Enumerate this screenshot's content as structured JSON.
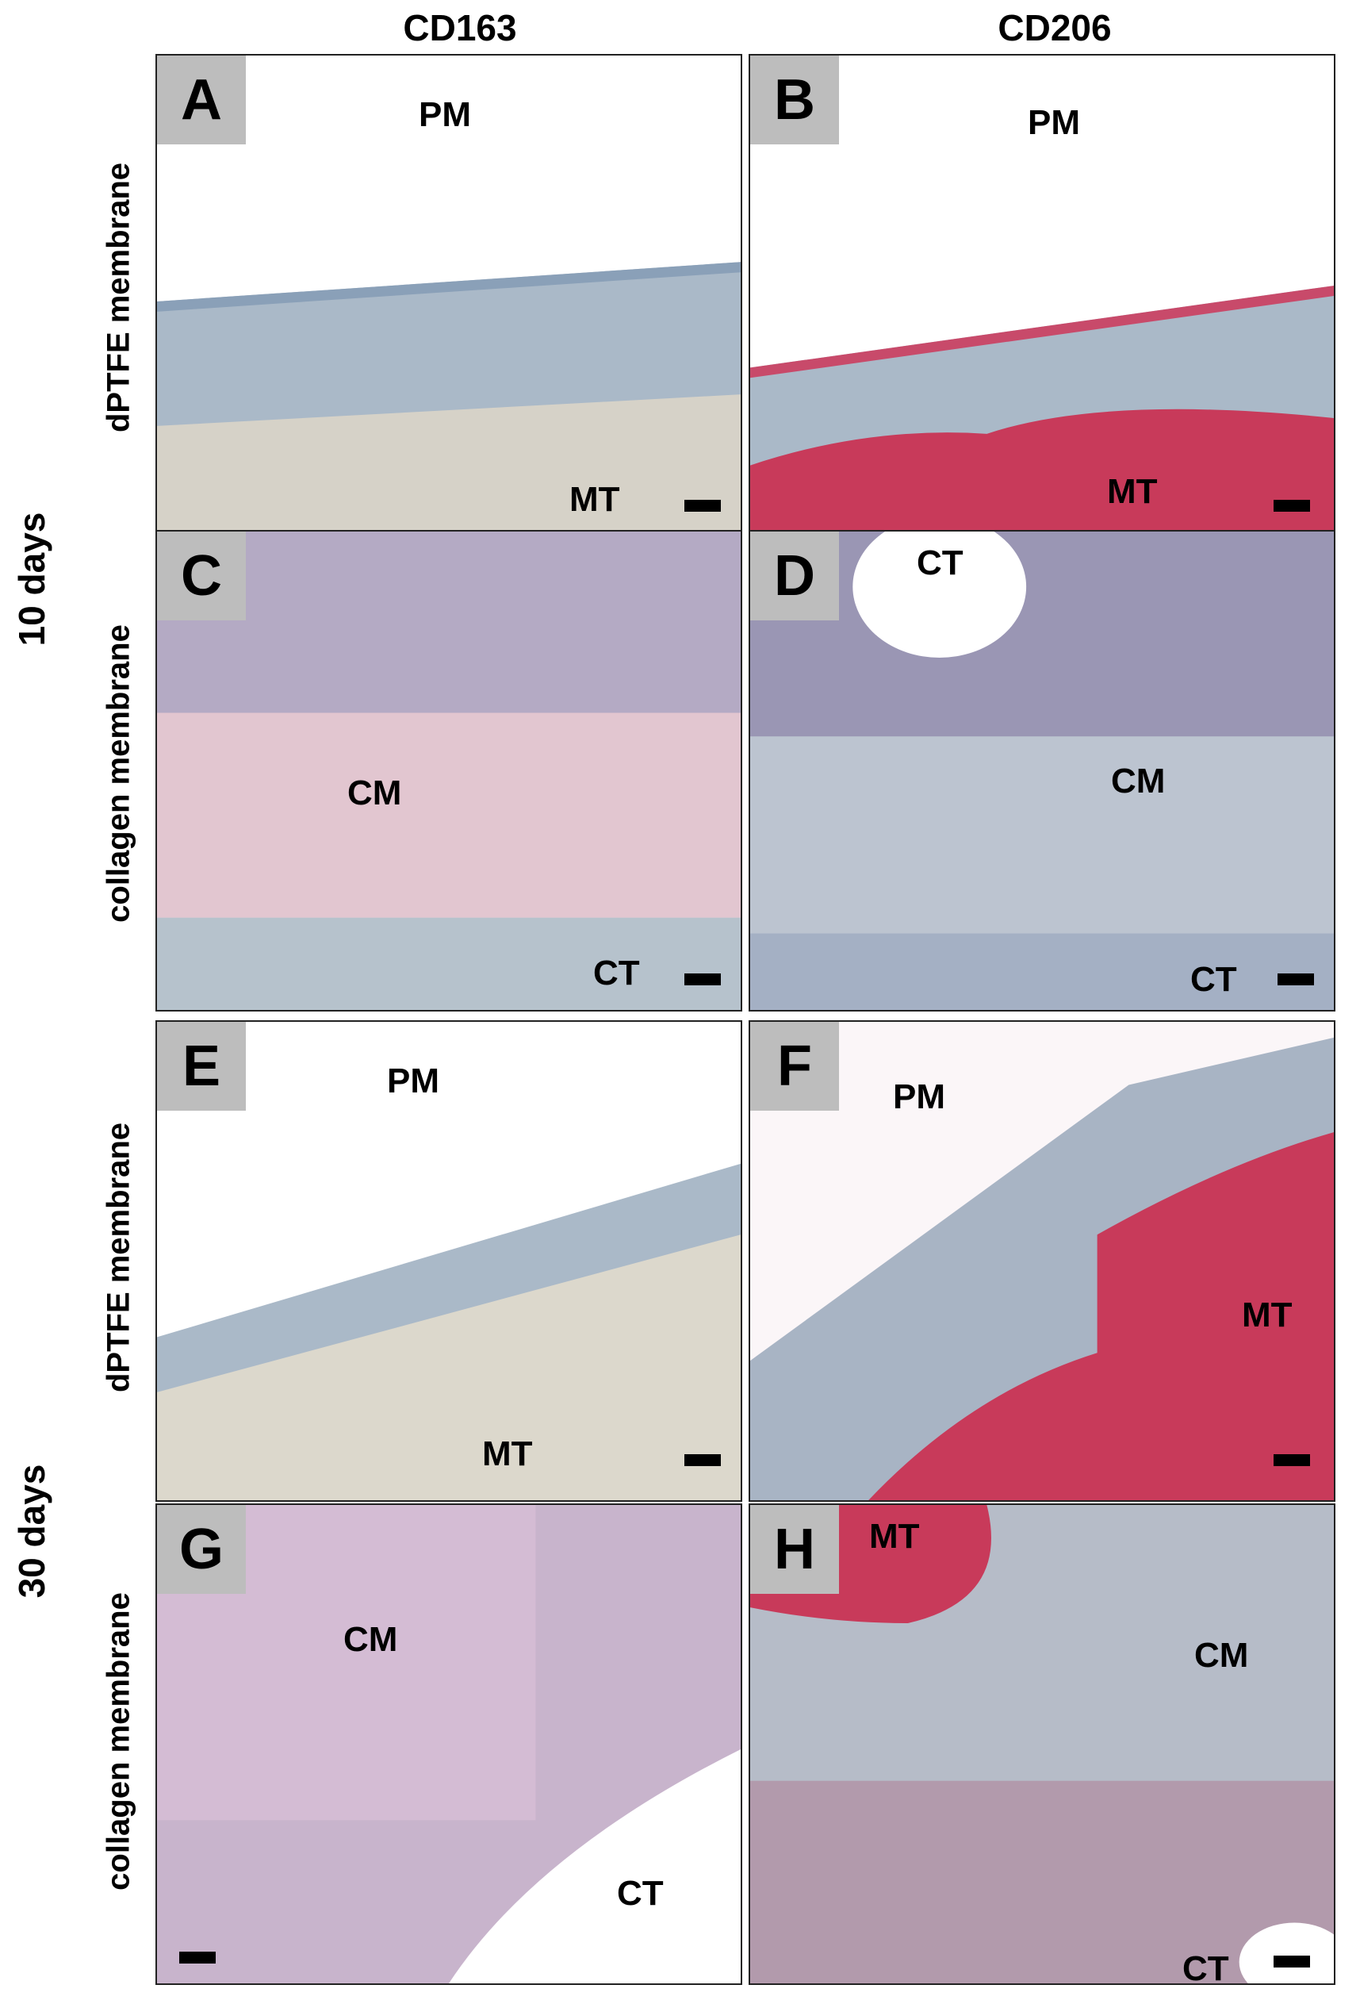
{
  "columns": [
    "CD163",
    "CD206"
  ],
  "time_labels": [
    "10 days",
    "30 days"
  ],
  "row_labels": [
    "dPTFE membrane",
    "collagen membrane",
    "dPTFE membrane",
    "collagen membrane"
  ],
  "panels": [
    {
      "letter": "A",
      "top_label": "PM",
      "bottom_label": "MT"
    },
    {
      "letter": "B",
      "top_label": "PM",
      "bottom_label": "MT"
    },
    {
      "letter": "C",
      "center_label": "CM",
      "bottom_label": "CT"
    },
    {
      "letter": "D",
      "top_label": "CT",
      "center_label": "CM",
      "bottom_label": "CT"
    },
    {
      "letter": "E",
      "top_label": "PM",
      "bottom_label": "MT"
    },
    {
      "letter": "F",
      "top_label": "PM",
      "center_label": "MT"
    },
    {
      "letter": "G",
      "center_label": "CM",
      "bottom_label": "CT"
    },
    {
      "letter": "H",
      "top_label": "MT",
      "center_label": "CM",
      "bottom_label": "CT"
    }
  ],
  "colors": {
    "arrow": "#f5b400",
    "panel_letter_bg": "#bdbdbd",
    "tissue_blue": "#aab9c8",
    "stain_red": "#c83a5a"
  }
}
